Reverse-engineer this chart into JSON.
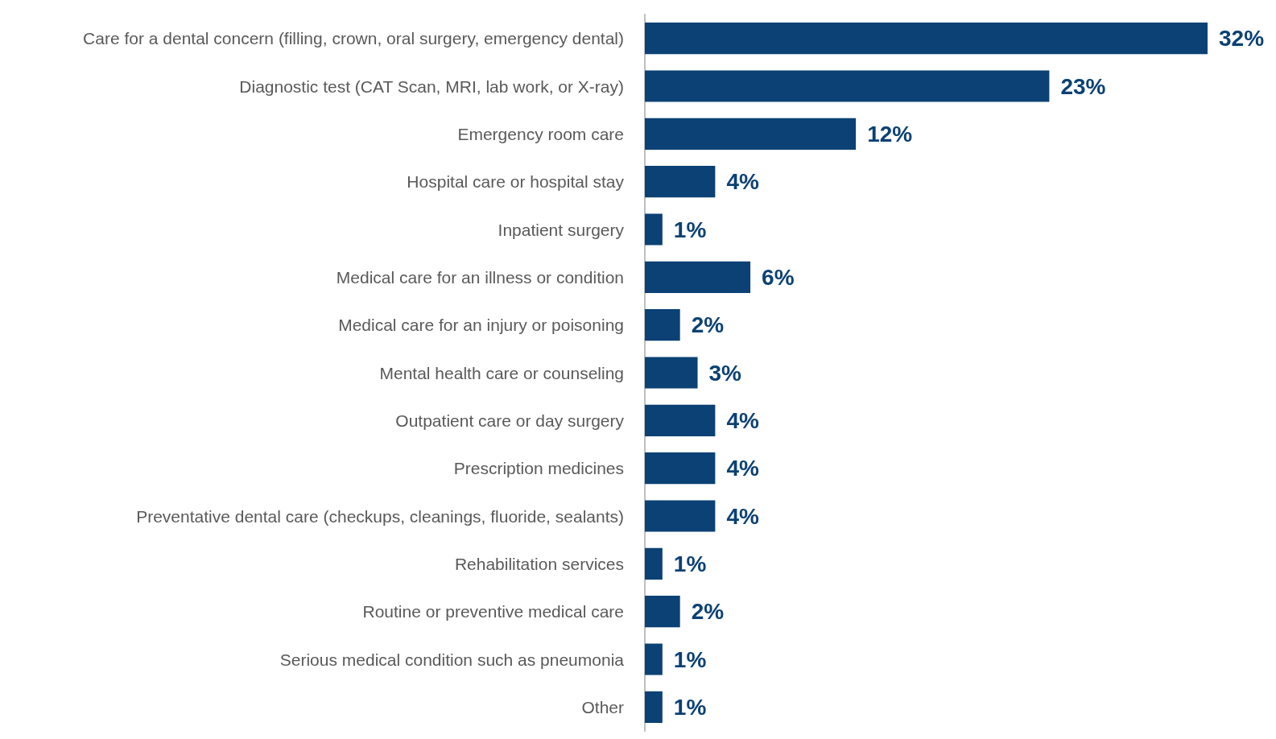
{
  "chart_data": {
    "type": "bar",
    "orientation": "horizontal",
    "categories": [
      "Care for a dental concern (filling, crown, oral surgery, emergency dental)",
      "Diagnostic test (CAT Scan, MRI, lab work, or X-ray)",
      "Emergency room care",
      "Hospital care or hospital stay",
      "Inpatient surgery",
      "Medical care for an illness or condition",
      "Medical care for an injury or poisoning",
      "Mental health care or counseling",
      "Outpatient care or day surgery",
      "Prescription medicines",
      "Preventative dental care (checkups, cleanings, fluoride, sealants)",
      "Rehabilitation services",
      "Routine or preventive medical care",
      "Serious medical condition such as pneumonia",
      "Other"
    ],
    "values": [
      32,
      23,
      12,
      4,
      1,
      6,
      2,
      3,
      4,
      4,
      4,
      1,
      2,
      1,
      1
    ],
    "value_labels": [
      "32%",
      "23%",
      "12%",
      "4%",
      "1%",
      "6%",
      "2%",
      "3%",
      "4%",
      "4%",
      "4%",
      "1%",
      "2%",
      "1%",
      "1%"
    ],
    "color": "#0b4174"
  }
}
